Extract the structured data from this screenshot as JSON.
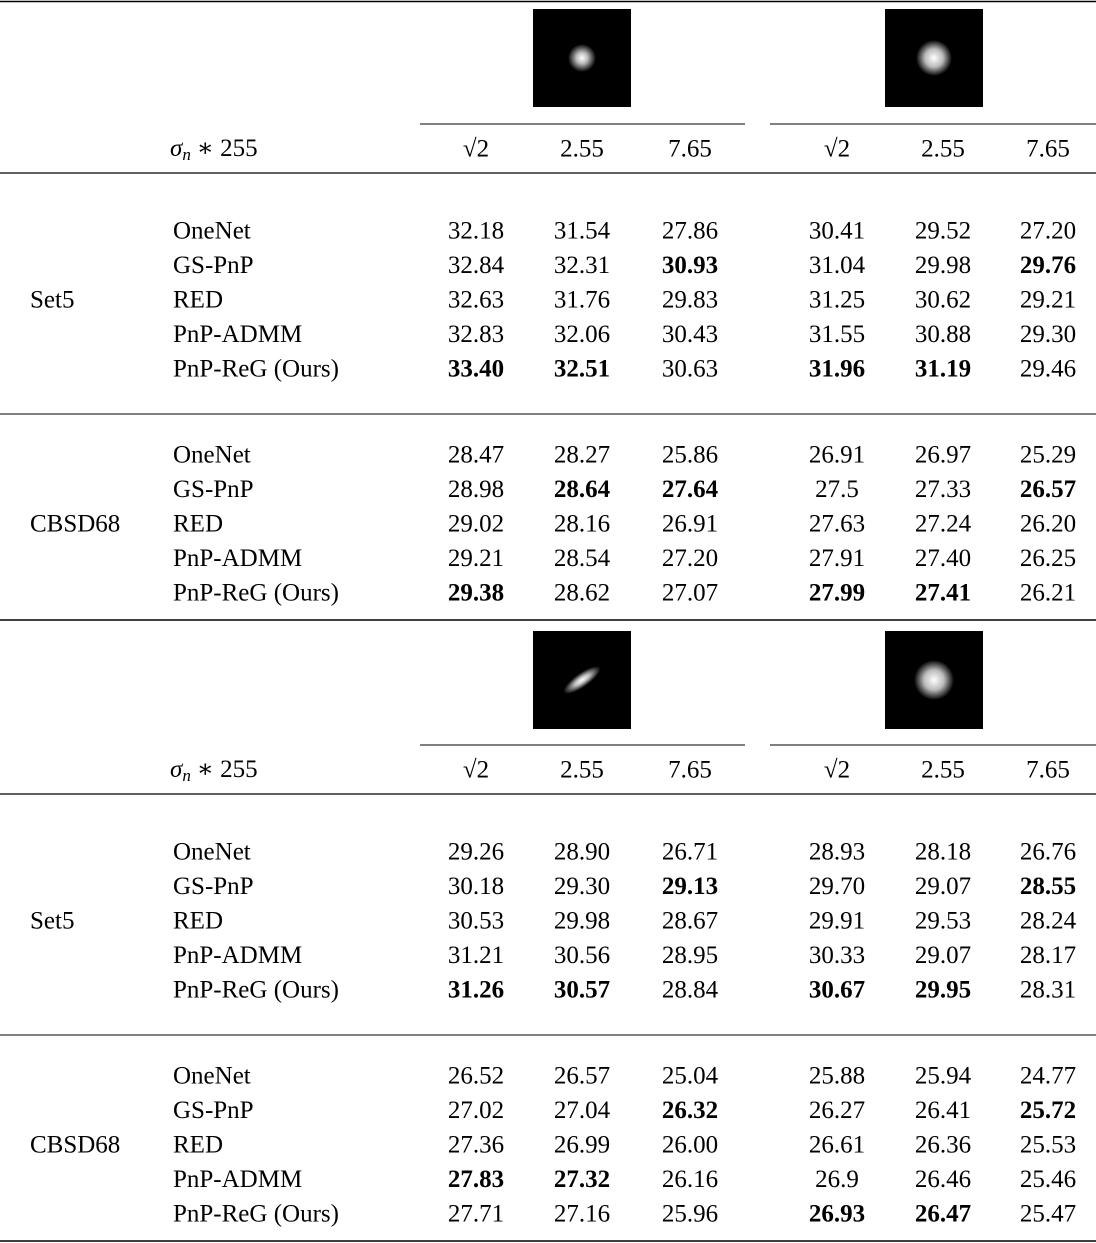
{
  "blocks": [
    {
      "noise_label": {
        "symbol": "σ",
        "subscript": "n",
        "suffix": "∗ 255"
      },
      "noise_levels": [
        "√2",
        "2.55",
        "7.65",
        "√2",
        "2.55",
        "7.65"
      ],
      "datasets": [
        {
          "name": "Set5",
          "rows": [
            {
              "method": "OneNet",
              "values": [
                "32.18",
                "31.54",
                "27.86",
                "30.41",
                "29.52",
                "27.20"
              ],
              "bold": []
            },
            {
              "method": "GS-PnP",
              "values": [
                "32.84",
                "32.31",
                "30.93",
                "31.04",
                "29.98",
                "29.76"
              ],
              "bold": [
                2,
                5
              ]
            },
            {
              "method": "RED",
              "values": [
                "32.63",
                "31.76",
                "29.83",
                "31.25",
                "30.62",
                "29.21"
              ],
              "bold": []
            },
            {
              "method": "PnP-ADMM",
              "values": [
                "32.83",
                "32.06",
                "30.43",
                "31.55",
                "30.88",
                "29.30"
              ],
              "bold": []
            },
            {
              "method": "PnP-ReG (Ours)",
              "values": [
                "33.40",
                "32.51",
                "30.63",
                "31.96",
                "31.19",
                "29.46"
              ],
              "bold": [
                0,
                1,
                3,
                4
              ]
            }
          ]
        },
        {
          "name": "CBSD68",
          "rows": [
            {
              "method": "OneNet",
              "values": [
                "28.47",
                "28.27",
                "25.86",
                "26.91",
                "26.97",
                "25.29"
              ],
              "bold": []
            },
            {
              "method": "GS-PnP",
              "values": [
                "28.98",
                "28.64",
                "27.64",
                "27.5",
                "27.33",
                "26.57"
              ],
              "bold": [
                1,
                2,
                5
              ]
            },
            {
              "method": "RED",
              "values": [
                "29.02",
                "28.16",
                "26.91",
                "27.63",
                "27.24",
                "26.20"
              ],
              "bold": []
            },
            {
              "method": "PnP-ADMM",
              "values": [
                "29.21",
                "28.54",
                "27.20",
                "27.91",
                "27.40",
                "26.25"
              ],
              "bold": []
            },
            {
              "method": "PnP-ReG (Ours)",
              "values": [
                "29.38",
                "28.62",
                "27.07",
                "27.99",
                "27.41",
                "26.21"
              ],
              "bold": [
                0,
                3,
                4
              ]
            }
          ]
        }
      ]
    },
    {
      "noise_label": {
        "symbol": "σ",
        "subscript": "n",
        "suffix": "∗ 255"
      },
      "noise_levels": [
        "√2",
        "2.55",
        "7.65",
        "√2",
        "2.55",
        "7.65"
      ],
      "datasets": [
        {
          "name": "Set5",
          "rows": [
            {
              "method": "OneNet",
              "values": [
                "29.26",
                "28.90",
                "26.71",
                "28.93",
                "28.18",
                "26.76"
              ],
              "bold": []
            },
            {
              "method": "GS-PnP",
              "values": [
                "30.18",
                "29.30",
                "29.13",
                "29.70",
                "29.07",
                "28.55"
              ],
              "bold": [
                2,
                5
              ]
            },
            {
              "method": "RED",
              "values": [
                "30.53",
                "29.98",
                "28.67",
                "29.91",
                "29.53",
                "28.24"
              ],
              "bold": []
            },
            {
              "method": "PnP-ADMM",
              "values": [
                "31.21",
                "30.56",
                "28.95",
                "30.33",
                "29.07",
                "28.17"
              ],
              "bold": []
            },
            {
              "method": "PnP-ReG (Ours)",
              "values": [
                "31.26",
                "30.57",
                "28.84",
                "30.67",
                "29.95",
                "28.31"
              ],
              "bold": [
                0,
                1,
                3,
                4
              ]
            }
          ]
        },
        {
          "name": "CBSD68",
          "rows": [
            {
              "method": "OneNet",
              "values": [
                "26.52",
                "26.57",
                "25.04",
                "25.88",
                "25.94",
                "24.77"
              ],
              "bold": []
            },
            {
              "method": "GS-PnP",
              "values": [
                "27.02",
                "27.04",
                "26.32",
                "26.27",
                "26.41",
                "25.72"
              ],
              "bold": [
                2,
                5
              ]
            },
            {
              "method": "RED",
              "values": [
                "27.36",
                "26.99",
                "26.00",
                "26.61",
                "26.36",
                "25.53"
              ],
              "bold": []
            },
            {
              "method": "PnP-ADMM",
              "values": [
                "27.83",
                "27.32",
                "26.16",
                "26.9",
                "26.46",
                "25.46"
              ],
              "bold": [
                0,
                1
              ]
            },
            {
              "method": "PnP-ReG (Ours)",
              "values": [
                "27.71",
                "27.16",
                "25.96",
                "26.93",
                "26.47",
                "25.47"
              ],
              "bold": [
                3,
                4
              ]
            }
          ]
        }
      ]
    }
  ]
}
